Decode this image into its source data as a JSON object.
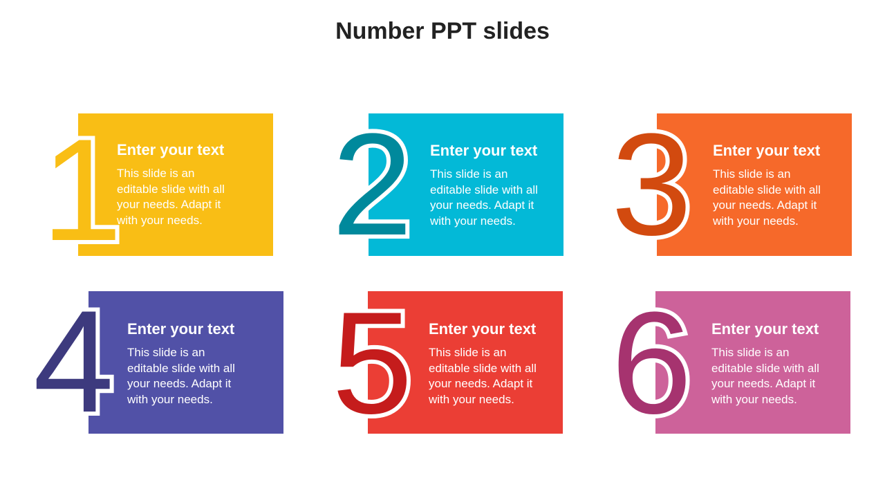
{
  "title": "Number PPT slides",
  "colors": {
    "card_1": "#F9BE15",
    "num_1": "#F9BE15",
    "card_2": "#03B9D7",
    "num_2": "#00899C",
    "card_3": "#F6692A",
    "num_3": "#D24A0F",
    "card_4": "#5151A7",
    "num_4": "#3D3A7E",
    "card_5": "#EB3E35",
    "num_5": "#C51C1C",
    "card_6": "#CD629A",
    "num_6": "#A6336F"
  },
  "items": [
    {
      "number": "1",
      "heading": "Enter your text",
      "lines": [
        "This slide is an",
        "editable slide with all",
        "your needs. Adapt it",
        "with your needs."
      ]
    },
    {
      "number": "2",
      "heading": "Enter your text",
      "lines": [
        "This slide is an",
        "editable slide with all",
        "your needs. Adapt it",
        "with your needs."
      ]
    },
    {
      "number": "3",
      "heading": "Enter your text",
      "lines": [
        "This slide is an",
        "editable slide with all",
        "your needs. Adapt it",
        "with your needs."
      ]
    },
    {
      "number": "4",
      "heading": "Enter your text",
      "lines": [
        "This slide is an",
        "editable slide with all",
        "your needs. Adapt it",
        "with your needs."
      ]
    },
    {
      "number": "5",
      "heading": "Enter your text",
      "lines": [
        "This slide is an",
        "editable slide with all",
        "your needs. Adapt it",
        "with your needs."
      ]
    },
    {
      "number": "6",
      "heading": "Enter your text",
      "lines": [
        "This slide is an",
        "editable slide with all",
        "your needs. Adapt it",
        "with your needs."
      ]
    }
  ]
}
